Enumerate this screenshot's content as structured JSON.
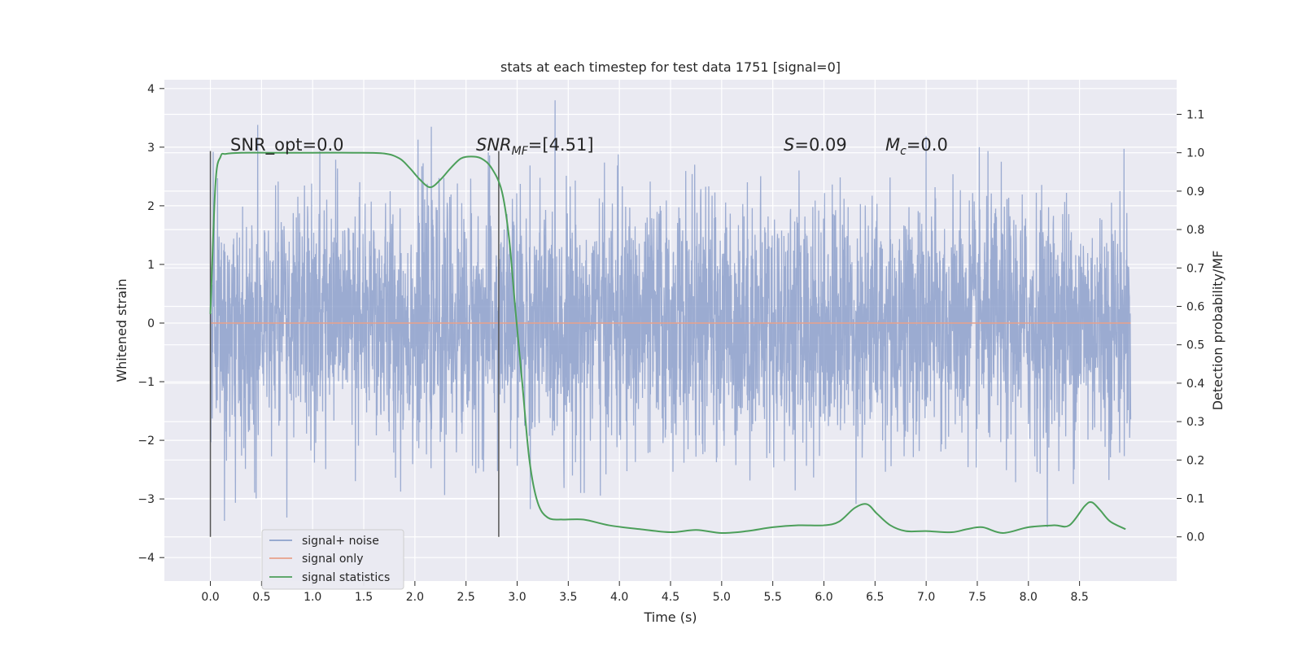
{
  "chart_data": {
    "type": "line",
    "title": "stats at each timestep for test data 1751 [signal=0]",
    "xlabel": "Time (s)",
    "ylabel": "Whitened strain",
    "y2label": "Detection probability/MF",
    "xlim": [
      -0.45,
      9.45
    ],
    "ylim": [
      -4.4,
      4.15
    ],
    "y2lim": [
      -0.115,
      1.19
    ],
    "x_ticks": [
      "0.0",
      "0.5",
      "1.0",
      "1.5",
      "2.0",
      "2.5",
      "3.0",
      "3.5",
      "4.0",
      "4.5",
      "5.0",
      "5.5",
      "6.0",
      "6.5",
      "7.0",
      "7.5",
      "8.0",
      "8.5"
    ],
    "y_ticks": [
      "4",
      "3",
      "2",
      "1",
      "0",
      "−1",
      "−2",
      "−3",
      "−4"
    ],
    "y2_ticks": [
      "1.1",
      "1.0",
      "0.9",
      "0.8",
      "0.7",
      "0.6",
      "0.5",
      "0.4",
      "0.3",
      "0.2",
      "0.1",
      "0.0"
    ],
    "grid": true,
    "legend_position": "lower-left",
    "legend": [
      "signal+ noise",
      "signal only",
      "signal statistics"
    ],
    "colors": {
      "signal_noise": "#8da0cb",
      "signal_only": "#e8a08a",
      "signal_statistics": "#4c9f5a",
      "plot_bg": "#eaeaf2",
      "grid": "#ffffff",
      "vline": "#555555"
    },
    "annotations": {
      "snr_opt": "SNR_opt=0.0",
      "snr_mf_main": "SNR",
      "snr_mf_sub": "MF",
      "snr_mf_value": "=[4.51]",
      "s_main": "S",
      "s_value": "=0.09",
      "mc_main": "M",
      "mc_sub": "c",
      "mc_value": "=0.0"
    },
    "vertical_lines_x": [
      0.0,
      2.82
    ],
    "series": [
      {
        "name": "signal+ noise",
        "axis": "left",
        "style": "noise band, values within about ±3.8",
        "x_range": [
          0.0,
          9.0
        ]
      },
      {
        "name": "signal only",
        "axis": "left",
        "x": [
          0.0,
          9.0
        ],
        "values": [
          0.0,
          0.0
        ]
      },
      {
        "name": "signal statistics",
        "axis": "right",
        "x": [
          0.0,
          0.05,
          0.1,
          0.15,
          0.3,
          0.6,
          1.0,
          1.4,
          1.7,
          1.85,
          1.95,
          2.05,
          2.15,
          2.25,
          2.35,
          2.45,
          2.55,
          2.65,
          2.75,
          2.85,
          2.92,
          2.98,
          3.05,
          3.12,
          3.2,
          3.3,
          3.45,
          3.65,
          3.9,
          4.2,
          4.5,
          4.75,
          5.0,
          5.25,
          5.5,
          5.75,
          6.0,
          6.15,
          6.3,
          6.42,
          6.52,
          6.65,
          6.8,
          7.0,
          7.25,
          7.4,
          7.55,
          7.75,
          8.0,
          8.25,
          8.4,
          8.55,
          8.62,
          8.7,
          8.8,
          8.95
        ],
        "values": [
          0.58,
          0.92,
          0.99,
          0.997,
          1.0,
          1.0,
          1.0,
          1.0,
          0.998,
          0.985,
          0.96,
          0.93,
          0.91,
          0.93,
          0.96,
          0.985,
          0.99,
          0.985,
          0.96,
          0.9,
          0.78,
          0.6,
          0.4,
          0.2,
          0.09,
          0.05,
          0.045,
          0.045,
          0.03,
          0.02,
          0.012,
          0.018,
          0.01,
          0.015,
          0.025,
          0.03,
          0.03,
          0.04,
          0.075,
          0.085,
          0.06,
          0.03,
          0.015,
          0.015,
          0.012,
          0.02,
          0.025,
          0.01,
          0.025,
          0.03,
          0.03,
          0.08,
          0.09,
          0.07,
          0.04,
          0.02
        ]
      }
    ]
  }
}
